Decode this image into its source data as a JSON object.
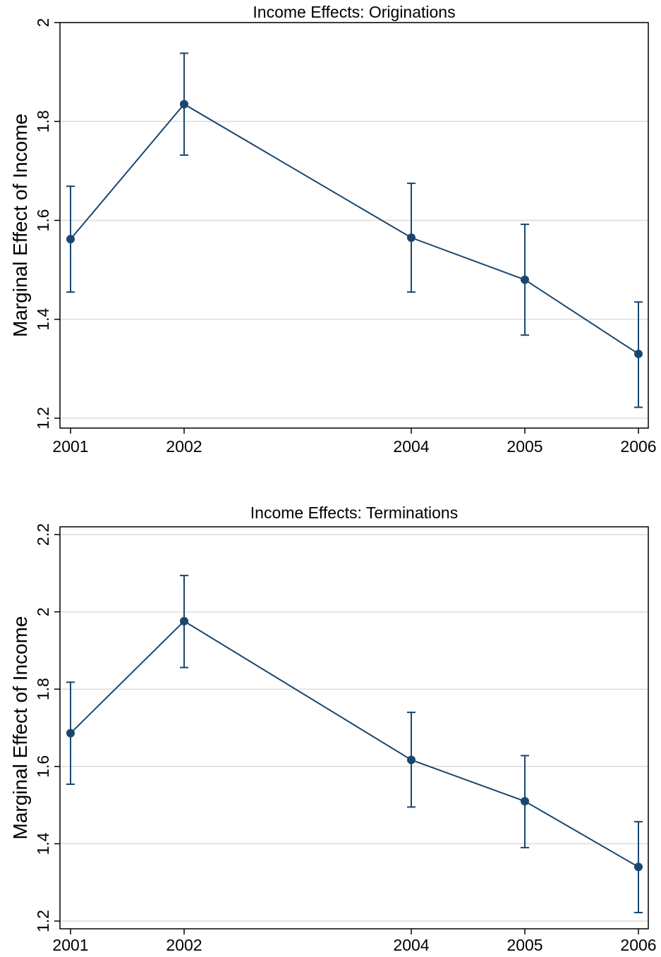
{
  "chart_data": [
    {
      "type": "line",
      "title": "Income Effects: Originations",
      "xlabel": "",
      "ylabel": "Marginal Effect of Income",
      "x": [
        2001,
        2002,
        2004,
        2005,
        2006
      ],
      "x_ticks": [
        "2001",
        "2002",
        "2004",
        "2005",
        "2006"
      ],
      "y_ticks": [
        "1.2",
        "1.4",
        "1.6",
        "1.8",
        "2"
      ],
      "xlim": [
        2001,
        2006
      ],
      "ylim": [
        1.18,
        2.0
      ],
      "grid": true,
      "series": [
        {
          "values": [
            1.562,
            1.835,
            1.565,
            1.48,
            1.33
          ],
          "ci_lower": [
            1.455,
            1.732,
            1.455,
            1.368,
            1.222
          ],
          "ci_upper": [
            1.669,
            1.938,
            1.675,
            1.592,
            1.435
          ],
          "color": "#1a476f"
        }
      ]
    },
    {
      "type": "line",
      "title": "Income Effects: Terminations",
      "xlabel": "",
      "ylabel": "Marginal Effect of Income",
      "x": [
        2001,
        2002,
        2004,
        2005,
        2006
      ],
      "x_ticks": [
        "2001",
        "2002",
        "2004",
        "2005",
        "2006"
      ],
      "y_ticks": [
        "1.2",
        "1.4",
        "1.6",
        "1.8",
        "2",
        "2.2"
      ],
      "xlim": [
        2001,
        2006
      ],
      "ylim": [
        1.18,
        2.22
      ],
      "grid": true,
      "series": [
        {
          "values": [
            1.686,
            1.976,
            1.617,
            1.51,
            1.34
          ],
          "ci_lower": [
            1.554,
            1.856,
            1.495,
            1.39,
            1.222
          ],
          "ci_upper": [
            1.818,
            2.094,
            1.74,
            1.628,
            1.457
          ],
          "color": "#1a476f"
        }
      ]
    }
  ]
}
